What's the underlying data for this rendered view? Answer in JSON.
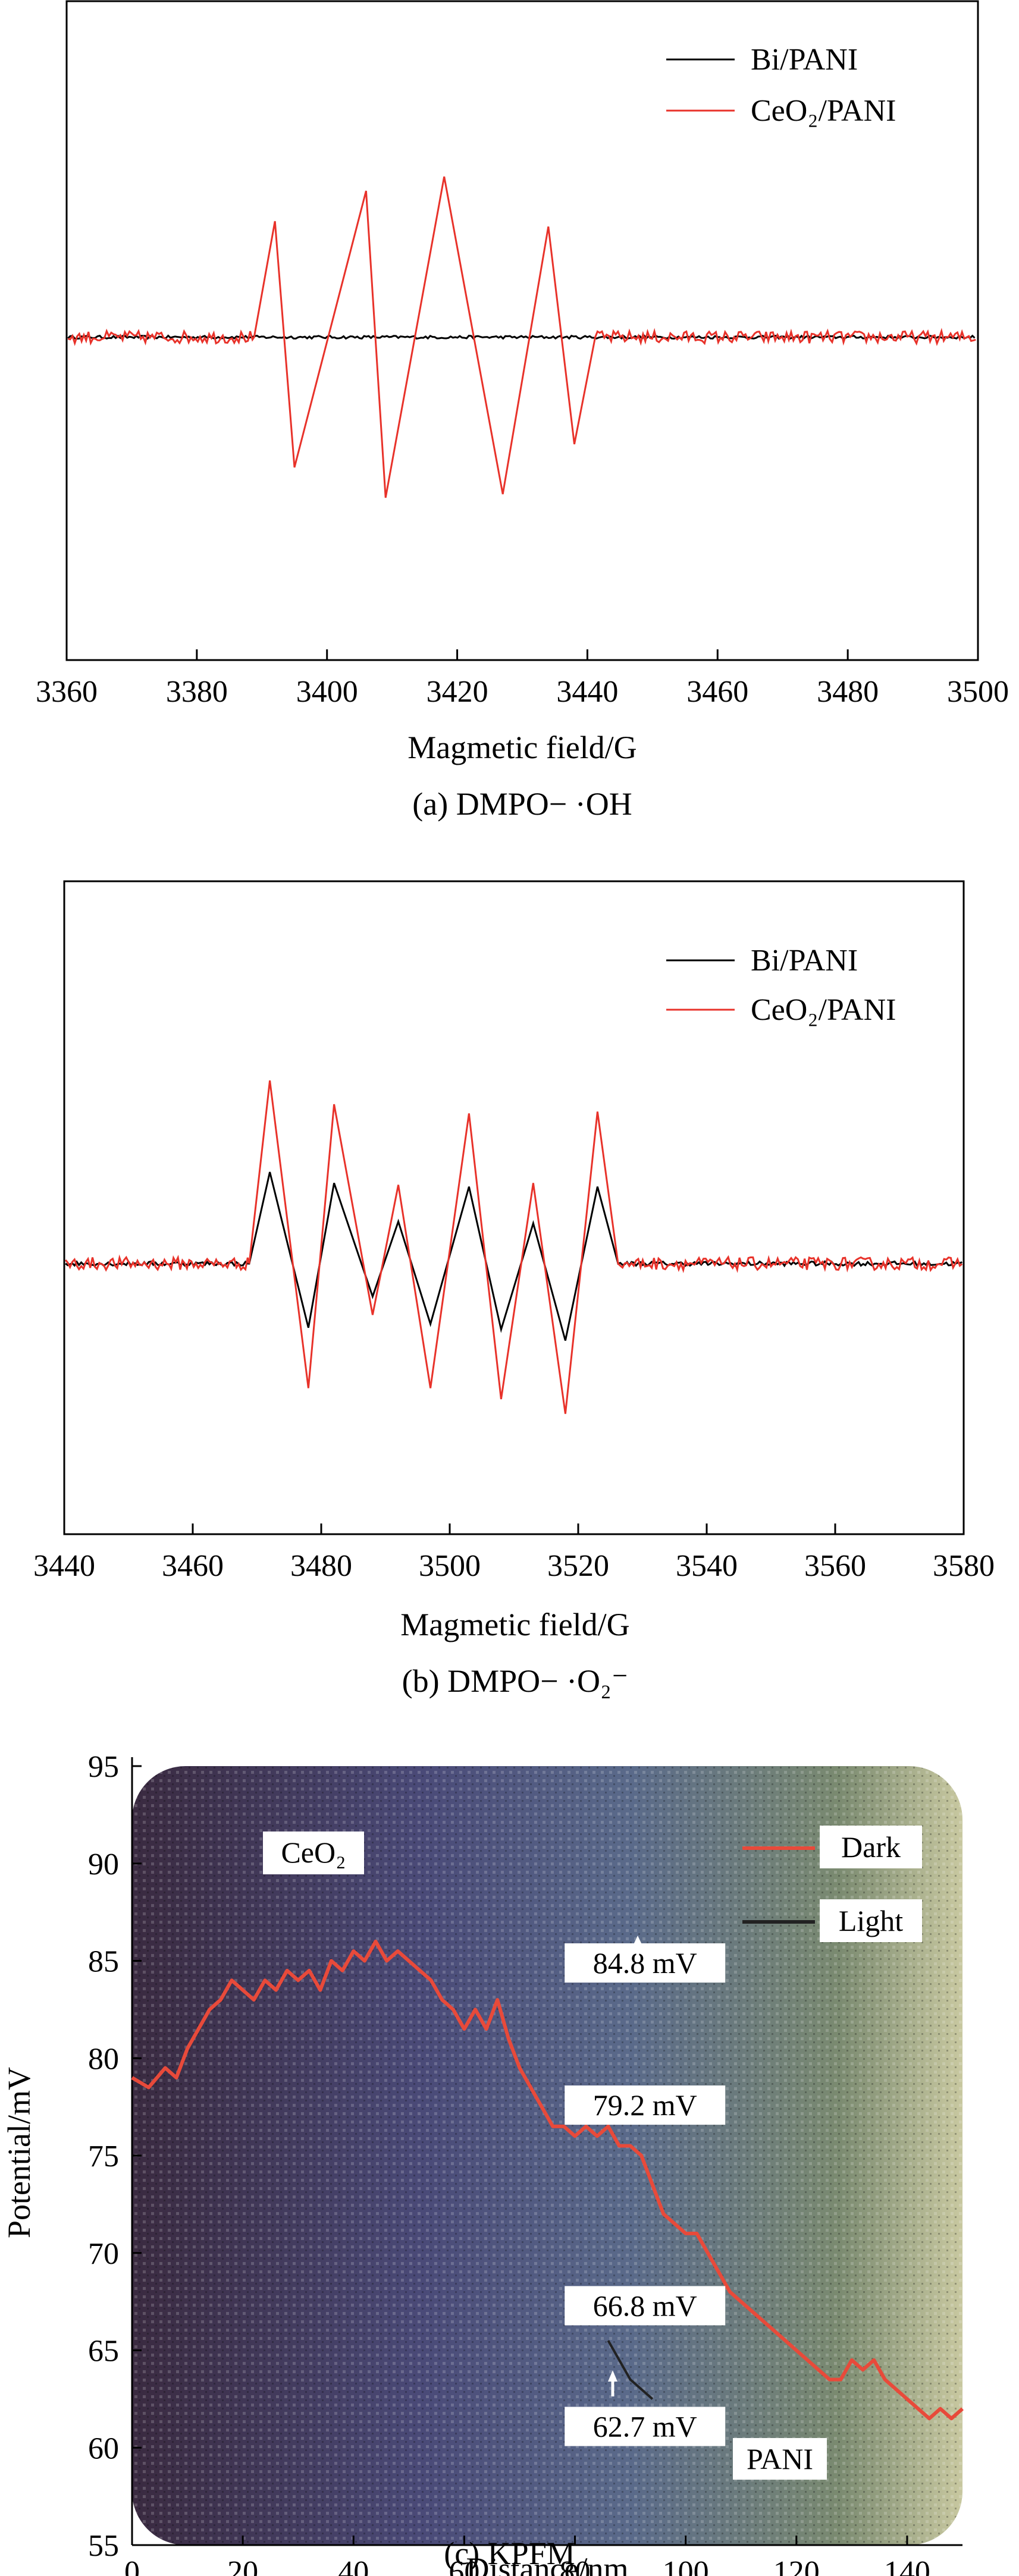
{
  "colors": {
    "bi_pani": "#000000",
    "ceo2_pani": "#e8322a",
    "kpfm_dark": "#e84a3a",
    "kpfm_light": "#222222"
  },
  "chart_data": [
    {
      "type": "line",
      "caption": "(a) DMPO− ·OH",
      "xlabel": "Magmetic field/G",
      "ylabel": "",
      "xlim": [
        3360,
        3500
      ],
      "xticks": [
        3360,
        3380,
        3400,
        3420,
        3440,
        3460,
        3480,
        3500
      ],
      "ylim": [
        -1.0,
        1.0
      ],
      "legend_position": "top-right",
      "series": [
        {
          "name": "Bi/PANI",
          "color": "#000000",
          "peaks": []
        },
        {
          "name": "CeO₂/PANI",
          "color": "#e8322a",
          "peaks": [
            {
              "x": 3392,
              "y": 0.65
            },
            {
              "x": 3395,
              "y": -0.73
            },
            {
              "x": 3406,
              "y": 0.82
            },
            {
              "x": 3409,
              "y": -0.9
            },
            {
              "x": 3418,
              "y": 0.9
            },
            {
              "x": 3427,
              "y": -0.88
            },
            {
              "x": 3434,
              "y": 0.62
            },
            {
              "x": 3438,
              "y": -0.6
            }
          ]
        }
      ]
    },
    {
      "type": "line",
      "caption": "(b) DMPO− ·O₂⁻",
      "xlabel": "Magmetic field/G",
      "ylabel": "",
      "xlim": [
        3440,
        3580
      ],
      "xticks": [
        3440,
        3460,
        3480,
        3500,
        3520,
        3540,
        3560,
        3580
      ],
      "ylim": [
        -1.0,
        1.0
      ],
      "legend_position": "top-right",
      "series": [
        {
          "name": "Bi/PANI",
          "color": "#000000",
          "peaks": [
            {
              "x": 3472,
              "y": 0.5
            },
            {
              "x": 3478,
              "y": -0.35
            },
            {
              "x": 3482,
              "y": 0.44
            },
            {
              "x": 3488,
              "y": -0.18
            },
            {
              "x": 3492,
              "y": 0.23
            },
            {
              "x": 3497,
              "y": -0.33
            },
            {
              "x": 3503,
              "y": 0.42
            },
            {
              "x": 3508,
              "y": -0.36
            },
            {
              "x": 3513,
              "y": 0.22
            },
            {
              "x": 3518,
              "y": -0.42
            },
            {
              "x": 3523,
              "y": 0.42
            }
          ]
        },
        {
          "name": "CeO₂/PANI",
          "color": "#e8322a",
          "peaks": [
            {
              "x": 3472,
              "y": 1.0
            },
            {
              "x": 3478,
              "y": -0.68
            },
            {
              "x": 3482,
              "y": 0.87
            },
            {
              "x": 3488,
              "y": -0.28
            },
            {
              "x": 3492,
              "y": 0.43
            },
            {
              "x": 3497,
              "y": -0.68
            },
            {
              "x": 3503,
              "y": 0.82
            },
            {
              "x": 3508,
              "y": -0.74
            },
            {
              "x": 3513,
              "y": 0.44
            },
            {
              "x": 3518,
              "y": -0.82
            },
            {
              "x": 3523,
              "y": 0.83
            }
          ]
        }
      ]
    },
    {
      "type": "line",
      "caption": "(c) KPFM",
      "xlabel": "Distance/nm",
      "ylabel": "Potential/mV",
      "xlim": [
        0,
        150
      ],
      "xticks": [
        0,
        20,
        40,
        60,
        80,
        100,
        120,
        140
      ],
      "ylim": [
        55,
        95
      ],
      "yticks": [
        55,
        60,
        65,
        70,
        75,
        80,
        85,
        90,
        95
      ],
      "legend_position": "top-right",
      "series": [
        {
          "name": "Dark",
          "color": "#e84a3a",
          "x": [
            0,
            3,
            6,
            8,
            10,
            12,
            14,
            16,
            18,
            20,
            22,
            24,
            26,
            28,
            30,
            32,
            34,
            36,
            38,
            40,
            42,
            44,
            46,
            48,
            50,
            52,
            54,
            56,
            58,
            60,
            62,
            64,
            66,
            68,
            70,
            72,
            74,
            76,
            78,
            80,
            82,
            84,
            86,
            88,
            90,
            92,
            94,
            96,
            98,
            100,
            102,
            104,
            106,
            108,
            110,
            112,
            114,
            116,
            118,
            120,
            122,
            124,
            126,
            128,
            130,
            132,
            134,
            136,
            138,
            140,
            142,
            144,
            146,
            148,
            150
          ],
          "y": [
            79.0,
            78.5,
            79.5,
            79.0,
            80.5,
            81.5,
            82.5,
            83.0,
            84.0,
            83.5,
            83.0,
            84.0,
            83.5,
            84.5,
            84.0,
            84.5,
            83.5,
            85.0,
            84.5,
            85.5,
            85.0,
            86.0,
            85.0,
            85.5,
            85.0,
            84.5,
            84.0,
            83.0,
            82.5,
            81.5,
            82.5,
            81.5,
            83.0,
            81.0,
            79.5,
            78.5,
            77.5,
            76.5,
            76.5,
            76.0,
            76.5,
            76.0,
            76.5,
            75.5,
            75.5,
            75.0,
            73.5,
            72.0,
            71.5,
            71.0,
            71.0,
            70.0,
            69.0,
            68.0,
            67.5,
            67.0,
            66.5,
            66.0,
            65.5,
            65.0,
            64.5,
            64.0,
            63.5,
            63.5,
            64.5,
            64.0,
            64.5,
            63.5,
            63.0,
            62.5,
            62.0,
            61.5,
            62.0,
            61.5,
            62.0
          ]
        },
        {
          "name": "Light",
          "color": "#222222",
          "x": [
            86,
            88,
            90,
            92,
            94
          ],
          "y": [
            65.5,
            64.5,
            63.5,
            63.0,
            62.5
          ]
        }
      ],
      "annotations": [
        {
          "text": "84.8 mV",
          "x": 79,
          "y": 84.8
        },
        {
          "text": "79.2 mV",
          "x": 79,
          "y": 77.5
        },
        {
          "text": "66.8 mV",
          "x": 79,
          "y": 67.2
        },
        {
          "text": "62.7 mV",
          "x": 79,
          "y": 61.0
        }
      ],
      "region_labels": [
        "CeO₂",
        "PANI"
      ]
    }
  ]
}
